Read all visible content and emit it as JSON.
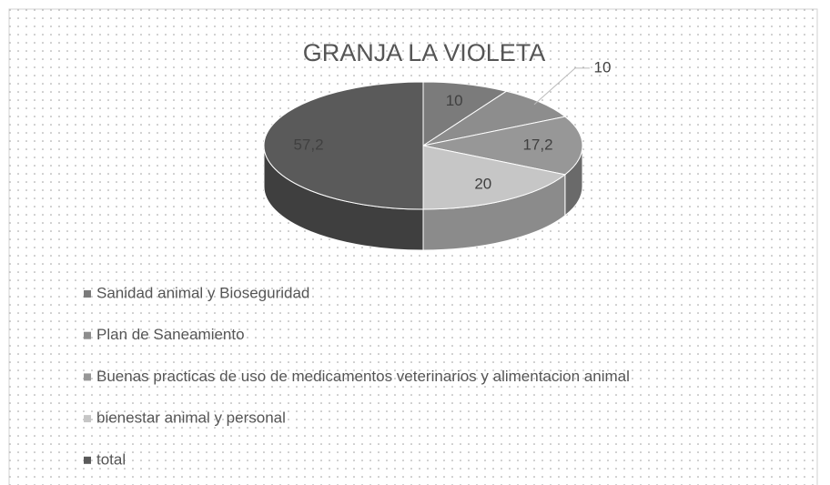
{
  "chart_data": {
    "type": "pie",
    "title": "GRANJA LA VIOLETA",
    "categories": [
      "Sanidad animal y Bioseguridad",
      "Plan de Saneamiento",
      "Buenas practicas de uso de medicamentos veterinarios y alimentacion animal",
      "bienestar animal y personal",
      "total"
    ],
    "values": [
      10,
      10,
      17.2,
      20,
      57.2
    ],
    "value_labels": [
      "10",
      "10",
      "17,2",
      "20",
      "57,2"
    ],
    "colors": [
      "#7b7b7b",
      "#8d8d8d",
      "#979797",
      "#c6c6c6",
      "#5a5a5a"
    ],
    "legend": "bottom"
  }
}
